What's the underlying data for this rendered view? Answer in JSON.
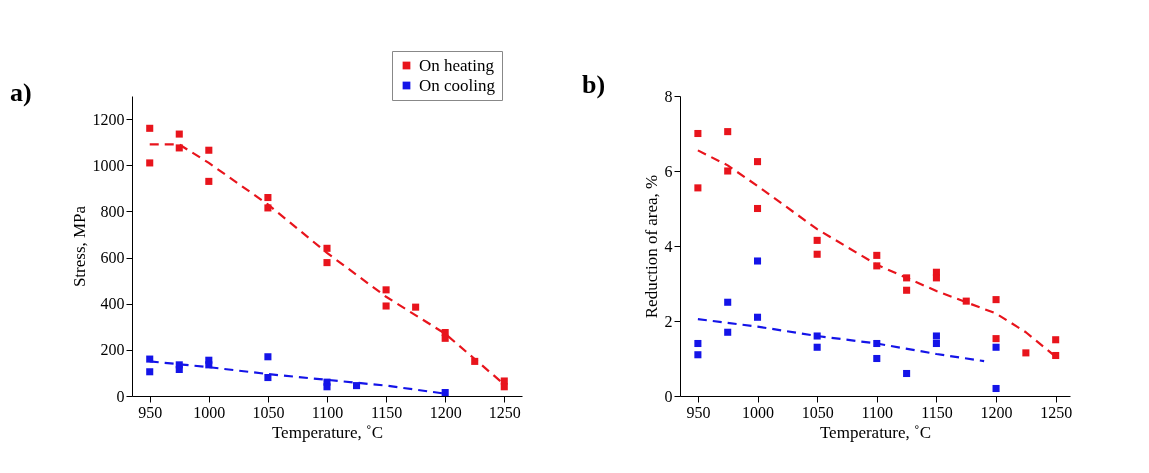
{
  "chart_data": [
    {
      "type": "scatter",
      "title": "a)",
      "xlabel": "Temperature, ˚C",
      "ylabel": "Stress, MPa",
      "xlim": [
        935,
        1265
      ],
      "ylim": [
        0,
        1300
      ],
      "xticks": [
        950,
        1000,
        1050,
        1100,
        1150,
        1200,
        1250
      ],
      "yticks": [
        0,
        200,
        400,
        600,
        800,
        1000,
        1200
      ],
      "grid": false,
      "legend": "top right",
      "series": [
        {
          "name": "On heating",
          "marker": "square",
          "color": "#e8141c",
          "x": [
            950,
            950,
            975,
            975,
            1000,
            1000,
            1050,
            1050,
            1100,
            1100,
            1150,
            1150,
            1175,
            1200,
            1200,
            1225,
            1250,
            1250
          ],
          "values": [
            1160,
            1010,
            1135,
            1075,
            1065,
            930,
            860,
            815,
            640,
            578,
            460,
            390,
            385,
            275,
            250,
            150,
            65,
            40
          ]
        },
        {
          "name": "On cooling",
          "marker": "square",
          "color": "#1414e8",
          "x": [
            950,
            950,
            975,
            975,
            1000,
            1000,
            1050,
            1050,
            1100,
            1100,
            1125,
            1200
          ],
          "values": [
            160,
            105,
            135,
            115,
            155,
            135,
            170,
            80,
            60,
            40,
            45,
            15
          ]
        },
        {
          "type": "line",
          "line_style": "dashed",
          "color": "#e8141c",
          "x": [
            950,
            975,
            1000,
            1050,
            1100,
            1150,
            1200,
            1225,
            1250
          ],
          "values": [
            1090,
            1090,
            1010,
            830,
            620,
            430,
            270,
            160,
            50
          ]
        },
        {
          "type": "line",
          "line_style": "dashed",
          "color": "#1414e8",
          "x": [
            950,
            1000,
            1050,
            1100,
            1150,
            1200
          ],
          "values": [
            150,
            125,
            95,
            70,
            45,
            10
          ]
        }
      ]
    },
    {
      "type": "scatter",
      "title": "b)",
      "xlabel": "Temperature, ˚C",
      "ylabel": "Reduction of area, %",
      "xlim": [
        935,
        1262
      ],
      "ylim": [
        0,
        8
      ],
      "xticks": [
        950,
        1000,
        1050,
        1100,
        1150,
        1200,
        1250
      ],
      "yticks": [
        0,
        2,
        4,
        6,
        8
      ],
      "grid": false,
      "legend": "top right",
      "series": [
        {
          "name": "On heating",
          "marker": "square",
          "color": "#e8141c",
          "x": [
            950,
            950,
            975,
            975,
            1000,
            1000,
            1050,
            1050,
            1100,
            1100,
            1125,
            1125,
            1150,
            1150,
            1175,
            1200,
            1200,
            1225,
            1250,
            1250
          ],
          "values": [
            7.0,
            5.55,
            7.05,
            6.0,
            6.25,
            5.0,
            4.15,
            3.78,
            3.75,
            3.47,
            3.15,
            2.82,
            3.3,
            3.15,
            2.53,
            2.57,
            1.53,
            1.15,
            1.5,
            1.08
          ]
        },
        {
          "name": "On cooling",
          "marker": "square",
          "color": "#1414e8",
          "x": [
            950,
            950,
            975,
            975,
            1000,
            1000,
            1050,
            1050,
            1100,
            1100,
            1125,
            1150,
            1150,
            1200,
            1200
          ],
          "values": [
            1.4,
            1.1,
            2.5,
            1.7,
            3.6,
            2.1,
            1.6,
            1.3,
            1.4,
            1.0,
            0.6,
            1.6,
            1.4,
            1.3,
            0.2
          ]
        },
        {
          "type": "line",
          "line_style": "dashed",
          "color": "#e8141c",
          "x": [
            950,
            975,
            1000,
            1050,
            1100,
            1150,
            1200,
            1225,
            1250
          ],
          "values": [
            6.55,
            6.15,
            5.6,
            4.45,
            3.5,
            2.8,
            2.2,
            1.7,
            1.05
          ]
        },
        {
          "type": "line",
          "line_style": "dashed",
          "color": "#1414e8",
          "x": [
            950,
            1000,
            1050,
            1100,
            1150,
            1190
          ],
          "values": [
            2.05,
            1.85,
            1.6,
            1.4,
            1.12,
            0.93
          ]
        }
      ]
    }
  ]
}
